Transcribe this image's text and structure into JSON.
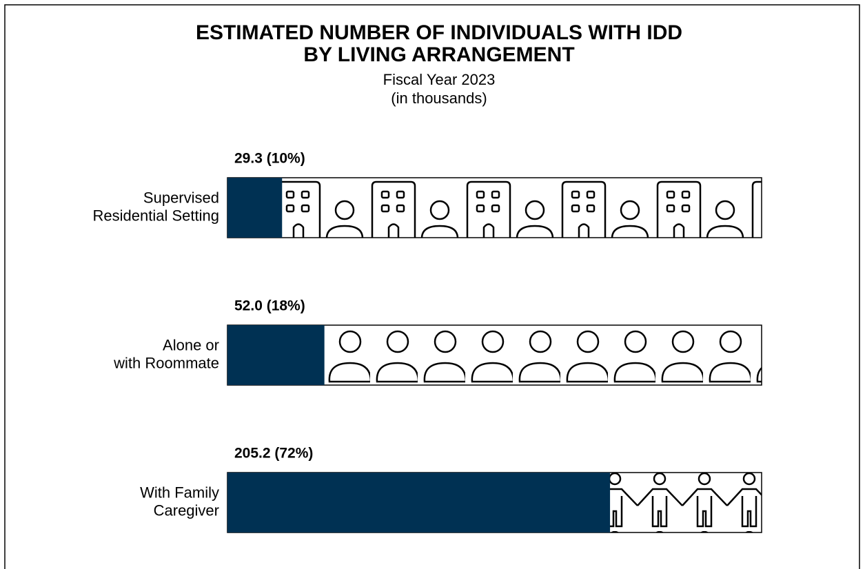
{
  "chart_data": {
    "type": "bar",
    "orientation": "horizontal",
    "title": [
      "ESTIMATED NUMBER OF INDIVIDUALS WITH IDD",
      "BY LIVING ARRANGEMENT"
    ],
    "subtitle": [
      "Fiscal Year 2023",
      "(in thousands)"
    ],
    "categories": [
      [
        "Supervised",
        "Residential Setting"
      ],
      [
        "Alone or",
        "with Roommate"
      ],
      [
        "With Family",
        "Caregiver"
      ]
    ],
    "values": [
      29.3,
      52.0,
      205.2
    ],
    "value_labels": [
      "29.3 (10%)",
      "52.0 (18%)",
      "205.2 (72%)"
    ],
    "color": "#003153",
    "xlim": [
      0,
      286.5
    ]
  }
}
